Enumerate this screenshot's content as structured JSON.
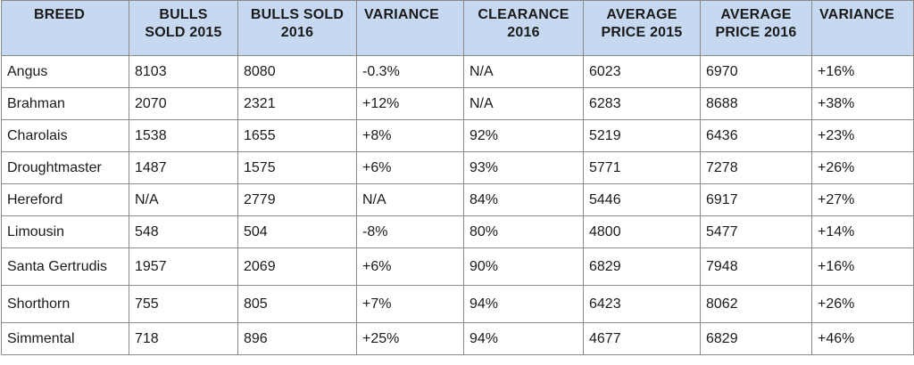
{
  "table": {
    "headers": [
      "BREED",
      "BULLS\nSOLD 2015",
      "BULLS SOLD\n2016",
      "VARIANCE",
      "CLEARANCE\n2016",
      "AVERAGE\nPRICE 2015",
      "AVERAGE\nPRICE 2016",
      "VARIANCE"
    ],
    "rows": [
      [
        "Angus",
        "8103",
        "8080",
        "-0.3%",
        "N/A",
        "6023",
        "6970",
        "+16%"
      ],
      [
        "Brahman",
        "2070",
        "2321",
        "+12%",
        "N/A",
        "6283",
        "8688",
        "+38%"
      ],
      [
        "Charolais",
        "1538",
        "1655",
        "+8%",
        "92%",
        "5219",
        "6436",
        "+23%"
      ],
      [
        "Droughtmaster",
        "1487",
        "1575",
        "+6%",
        "93%",
        "5771",
        "7278",
        "+26%"
      ],
      [
        "Hereford",
        "N/A",
        "2779",
        "N/A",
        "84%",
        "5446",
        "6917",
        "+27%"
      ],
      [
        "Limousin",
        "548",
        "504",
        "-8%",
        "80%",
        "4800",
        "5477",
        "+14%"
      ],
      [
        "Santa Gertrudis",
        "1957",
        "2069",
        "+6%",
        "90%",
        "6829",
        "7948",
        "+16%"
      ],
      [
        "Shorthorn",
        "755",
        "805",
        "+7%",
        "94%",
        "6423",
        "8062",
        "+26%"
      ],
      [
        "Simmental",
        "718",
        "896",
        "+25%",
        "94%",
        "4677",
        "6829",
        "+46%"
      ]
    ]
  },
  "colors": {
    "header_background": "#c6d9f1",
    "border": "#8a8a8a"
  }
}
